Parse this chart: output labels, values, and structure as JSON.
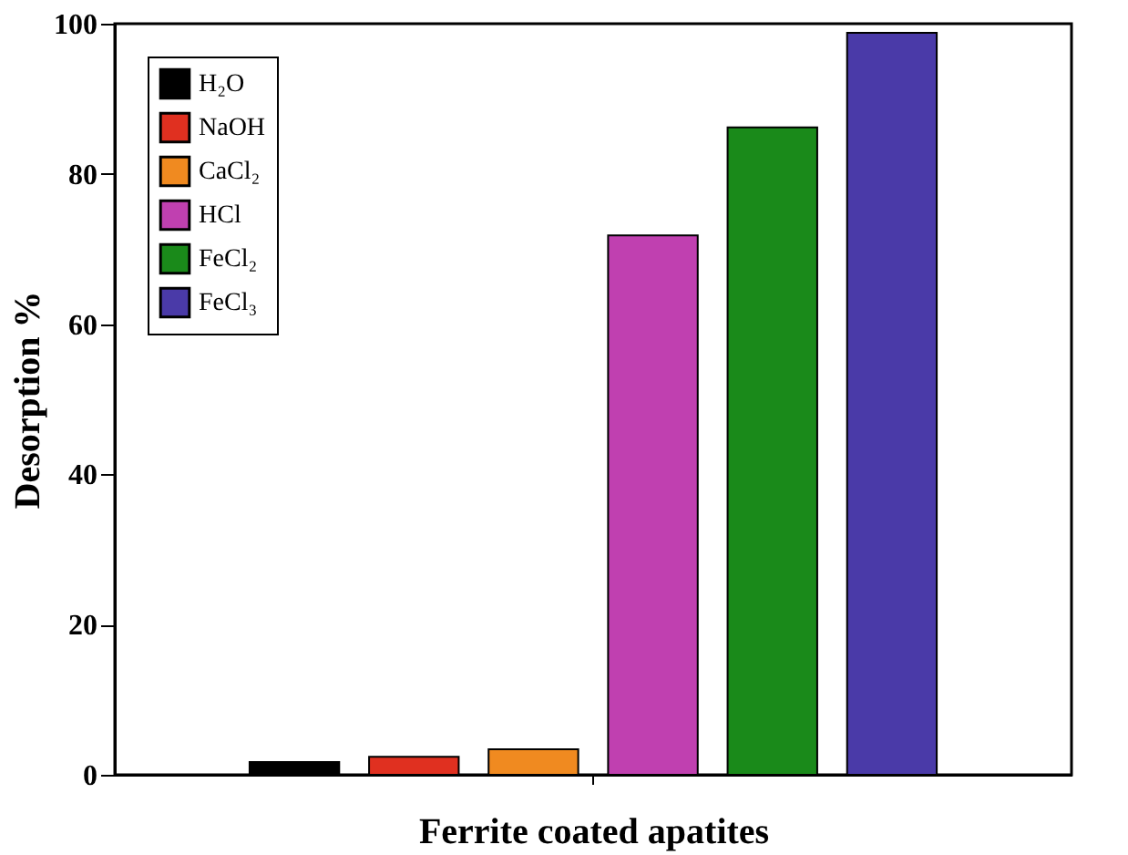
{
  "chart_data": {
    "type": "bar",
    "xlabel": "Ferrite coated apatites",
    "ylabel": "Desorption %",
    "categories": [
      null
    ],
    "series": [
      {
        "name": "H₂O",
        "color": "#000000",
        "values": [
          1.7
        ]
      },
      {
        "name": "NaOH",
        "color": "#e03020",
        "values": [
          2.4
        ]
      },
      {
        "name": "CaCl₂",
        "color": "#f08a20",
        "values": [
          3.4
        ]
      },
      {
        "name": "HCl",
        "color": "#c040b0",
        "values": [
          71.8
        ]
      },
      {
        "name": "FeCl₂",
        "color": "#1a8a1a",
        "values": [
          86.2
        ]
      },
      {
        "name": "FeCl₃",
        "color": "#4a3aa8",
        "values": [
          98.8
        ]
      }
    ],
    "ylim": [
      0,
      100
    ],
    "yticks": [
      0,
      20,
      40,
      60,
      80,
      100
    ],
    "grid": false,
    "legend": "top left"
  }
}
